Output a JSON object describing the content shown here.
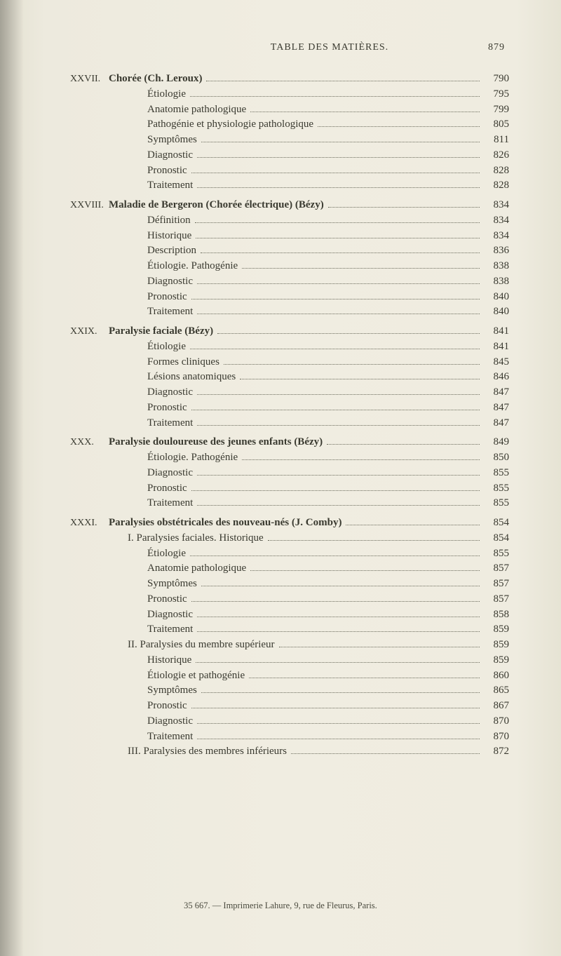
{
  "header": {
    "title": "TABLE DES MATIÈRES.",
    "page": "879"
  },
  "sections": [
    {
      "roman": "XXVII.",
      "head": {
        "label": "Chorée (Ch. Leroux)",
        "page": "790",
        "bold": true
      },
      "lines": [
        {
          "label": "Étiologie",
          "page": "795"
        },
        {
          "label": "Anatomie pathologique",
          "page": "799"
        },
        {
          "label": "Pathogénie et physiologie pathologique",
          "page": "805"
        },
        {
          "label": "Symptômes",
          "page": "811"
        },
        {
          "label": "Diagnostic",
          "page": "826"
        },
        {
          "label": "Pronostic",
          "page": "828"
        },
        {
          "label": "Traitement",
          "page": "828"
        }
      ]
    },
    {
      "roman": "XXVIII.",
      "head": {
        "label": "Maladie de Bergeron (Chorée électrique) (Bézy)",
        "page": "834",
        "bold": true
      },
      "lines": [
        {
          "label": "Définition",
          "page": "834"
        },
        {
          "label": "Historique",
          "page": "834"
        },
        {
          "label": "Description",
          "page": "836"
        },
        {
          "label": "Étiologie. Pathogénie",
          "page": "838"
        },
        {
          "label": "Diagnostic",
          "page": "838"
        },
        {
          "label": "Pronostic",
          "page": "840"
        },
        {
          "label": "Traitement",
          "page": "840"
        }
      ]
    },
    {
      "roman": "XXIX.",
      "head": {
        "label": "Paralysie faciale (Bézy)",
        "page": "841",
        "bold": true
      },
      "lines": [
        {
          "label": "Étiologie",
          "page": "841"
        },
        {
          "label": "Formes cliniques",
          "page": "845"
        },
        {
          "label": "Lésions anatomiques",
          "page": "846"
        },
        {
          "label": "Diagnostic",
          "page": "847"
        },
        {
          "label": "Pronostic",
          "page": "847"
        },
        {
          "label": "Traitement",
          "page": "847"
        }
      ]
    },
    {
      "roman": "XXX.",
      "head": {
        "label": "Paralysie douloureuse des jeunes enfants (Bézy)",
        "page": "849",
        "bold": true
      },
      "lines": [
        {
          "label": "Étiologie. Pathogénie",
          "page": "850"
        },
        {
          "label": "Diagnostic",
          "page": "855"
        },
        {
          "label": "Pronostic",
          "page": "855"
        },
        {
          "label": "Traitement",
          "page": "855"
        }
      ]
    },
    {
      "roman": "XXXI.",
      "head": {
        "label": "Paralysies obstétricales des nouveau-nés (J. Comby)",
        "page": "854",
        "bold": true
      },
      "groups": [
        {
          "sub": {
            "label": "I. Paralysies faciales. Historique",
            "page": "854"
          },
          "lines": [
            {
              "label": "Étiologie",
              "page": "855"
            },
            {
              "label": "Anatomie pathologique",
              "page": "857"
            },
            {
              "label": "Symptômes",
              "page": "857"
            },
            {
              "label": "Pronostic",
              "page": "857"
            },
            {
              "label": "Diagnostic",
              "page": "858"
            },
            {
              "label": "Traitement",
              "page": "859"
            }
          ]
        },
        {
          "sub": {
            "label": "II. Paralysies du membre supérieur",
            "page": "859"
          },
          "lines": [
            {
              "label": "Historique",
              "page": "859"
            },
            {
              "label": "Étiologie et pathogénie",
              "page": "860"
            },
            {
              "label": "Symptômes",
              "page": "865"
            },
            {
              "label": "Pronostic",
              "page": "867"
            },
            {
              "label": "Diagnostic",
              "page": "870"
            },
            {
              "label": "Traitement",
              "page": "870"
            }
          ]
        },
        {
          "sub": {
            "label": "III. Paralysies des membres inférieurs",
            "page": "872"
          },
          "lines": []
        }
      ]
    }
  ],
  "footer": "35 667. — Imprimerie Lahure, 9, rue de Fleurus, Paris."
}
